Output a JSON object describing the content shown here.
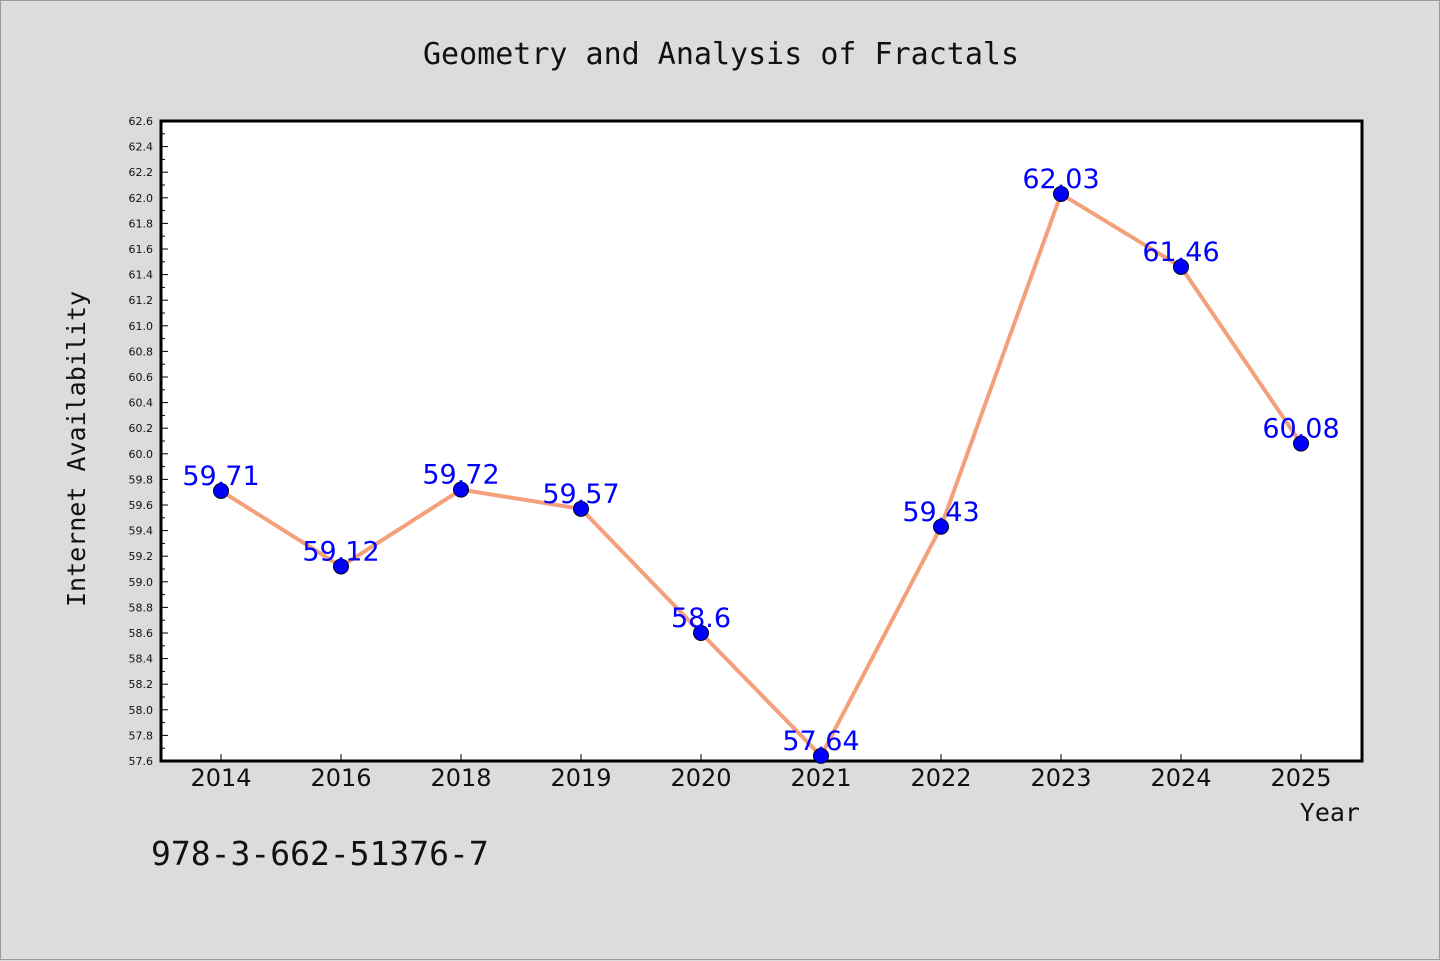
{
  "colors": {
    "background": "#dcdcdc",
    "plot_area": "#ffffff",
    "line": "#f4a07a",
    "marker": "#0000ff",
    "data_label": "#0000ff",
    "text": "#111111"
  },
  "footer": {
    "isbn": "978-3-662-51376-7"
  },
  "chart_data": {
    "type": "line",
    "title": "Geometry and Analysis of Fractals",
    "xlabel": "Year",
    "ylabel": "Internet Availability",
    "categories": [
      "2014",
      "2016",
      "2018",
      "2019",
      "2020",
      "2021",
      "2022",
      "2023",
      "2024",
      "2025"
    ],
    "series": [
      {
        "values": [
          59.71,
          59.12,
          59.72,
          59.57,
          58.6,
          57.64,
          59.43,
          62.03,
          61.46,
          60.08
        ],
        "labels": [
          "59.71",
          "59.12",
          "59.72",
          "59.57",
          "58.6",
          "57.64",
          "59.43",
          "62.03",
          "61.46",
          "60.08"
        ]
      }
    ],
    "ylim": [
      57.6,
      62.6
    ],
    "ytick_step": 0.2,
    "grid": false,
    "legend": "none",
    "markers": "circle"
  }
}
